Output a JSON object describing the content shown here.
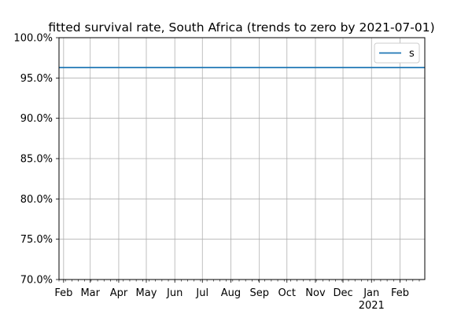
{
  "chart_data": {
    "type": "line",
    "title": "fitted survival rate, South Africa (trends to zero by 2021-07-01)",
    "xlabel": "",
    "ylabel": "",
    "xlim": [
      "2020-01-27",
      "2021-02-28"
    ],
    "ylim": [
      0.7,
      1.0
    ],
    "y_tick_values": [
      0.7,
      0.75,
      0.8,
      0.85,
      0.9,
      0.95,
      1.0
    ],
    "y_tick_labels": [
      "70.0%",
      "75.0%",
      "80.0%",
      "85.0%",
      "90.0%",
      "95.0%",
      "100.0%"
    ],
    "x_ticks": [
      {
        "date": "2020-02-01",
        "label": "Feb"
      },
      {
        "date": "2020-03-01",
        "label": "Mar"
      },
      {
        "date": "2020-04-01",
        "label": "Apr"
      },
      {
        "date": "2020-05-01",
        "label": "May"
      },
      {
        "date": "2020-06-01",
        "label": "Jun"
      },
      {
        "date": "2020-07-01",
        "label": "Jul"
      },
      {
        "date": "2020-08-01",
        "label": "Aug"
      },
      {
        "date": "2020-09-01",
        "label": "Sep"
      },
      {
        "date": "2020-10-01",
        "label": "Oct"
      },
      {
        "date": "2020-11-01",
        "label": "Nov"
      },
      {
        "date": "2020-12-01",
        "label": "Dec"
      },
      {
        "date": "2021-01-01",
        "label": "Jan",
        "sublabel": "2021"
      },
      {
        "date": "2021-02-01",
        "label": "Feb"
      }
    ],
    "grid": true,
    "legend_position": "top-right",
    "series": [
      {
        "name": "s",
        "color": "#1f77b4",
        "x": [
          "2020-01-27",
          "2021-02-28"
        ],
        "y": [
          0.963,
          0.963
        ]
      }
    ]
  }
}
